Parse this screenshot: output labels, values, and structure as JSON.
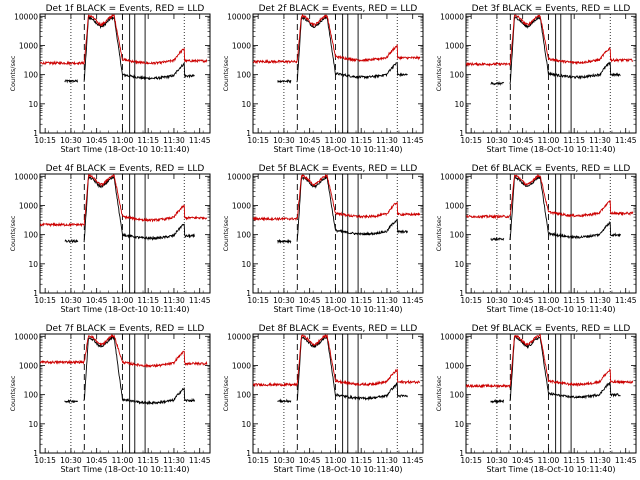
{
  "figure": {
    "background": "#ffffff"
  },
  "chart_data": [
    {
      "panel": "1f",
      "type": "line",
      "title": "Det 1f BLACK = Events, RED = LLD",
      "xlabel": "Start Time (18-Oct-10 10:11:40)",
      "ylabel": "Counts/sec",
      "xlim": [
        10.2,
        11.85
      ],
      "ylim": [
        1,
        12000
      ],
      "yscale": "log",
      "x_ticks": [
        "10:15",
        "10:30",
        "10:45",
        "11:00",
        "11:15",
        "11:30",
        "11:45"
      ],
      "y_ticks": [
        "1",
        "10",
        "100",
        "1000",
        "10000"
      ],
      "series": [
        {
          "name": "BLACK = Events",
          "color": "#000000",
          "baseline": 60,
          "pre_level": 60,
          "peak_level": 9000,
          "post_level": 100
        },
        {
          "name": "RED = LLD",
          "color": "#cc0000",
          "baseline": 250,
          "pre_level": 250,
          "peak_level": 10500,
          "post_level": 330
        }
      ],
      "vlines_dotted": [
        10.5,
        11.6
      ],
      "vlines_dashed": [
        10.63,
        11.0
      ],
      "vlines_solid": [
        11.07,
        11.12,
        11.22
      ]
    },
    {
      "panel": "2f",
      "type": "line",
      "title": "Det 2f BLACK = Events, RED = LLD",
      "xlabel": "Start Time (18-Oct-10 10:11:40)",
      "ylabel": "Counts/sec",
      "xlim": [
        10.2,
        11.85
      ],
      "ylim": [
        1,
        12000
      ],
      "yscale": "log",
      "x_ticks": [
        "10:15",
        "10:30",
        "10:45",
        "11:00",
        "11:15",
        "11:30",
        "11:45"
      ],
      "y_ticks": [
        "1",
        "10",
        "100",
        "1000",
        "10000"
      ],
      "series": [
        {
          "name": "BLACK = Events",
          "color": "#000000",
          "baseline": 60,
          "pre_level": 60,
          "peak_level": 9000,
          "post_level": 110
        },
        {
          "name": "RED = LLD",
          "color": "#cc0000",
          "baseline": 280,
          "pre_level": 280,
          "peak_level": 10500,
          "post_level": 420
        }
      ],
      "vlines_dotted": [
        10.5,
        11.6
      ],
      "vlines_dashed": [
        10.63,
        11.0
      ],
      "vlines_solid": [
        11.07,
        11.12,
        11.22
      ]
    },
    {
      "panel": "3f",
      "type": "line",
      "title": "Det 3f BLACK = Events, RED = LLD",
      "xlabel": "Start Time (18-Oct-10 10:11:40)",
      "ylabel": "Counts/sec",
      "xlim": [
        10.2,
        11.85
      ],
      "ylim": [
        1,
        12000
      ],
      "yscale": "log",
      "x_ticks": [
        "10:15",
        "10:30",
        "10:45",
        "11:00",
        "11:15",
        "11:30",
        "11:45"
      ],
      "y_ticks": [
        "1",
        "10",
        "100",
        "1000",
        "10000"
      ],
      "series": [
        {
          "name": "BLACK = Events",
          "color": "#000000",
          "baseline": 50,
          "pre_level": 50,
          "peak_level": 9000,
          "post_level": 110
        },
        {
          "name": "RED = LLD",
          "color": "#cc0000",
          "baseline": 230,
          "pre_level": 230,
          "peak_level": 10500,
          "post_level": 350
        }
      ],
      "vlines_dotted": [
        10.5,
        11.6
      ],
      "vlines_dashed": [
        10.63,
        11.0
      ],
      "vlines_solid": [
        11.07,
        11.12,
        11.22
      ]
    },
    {
      "panel": "4f",
      "type": "line",
      "title": "Det 4f BLACK = Events, RED = LLD",
      "xlabel": "Start Time (18-Oct-10 10:11:40)",
      "ylabel": "Counts/sec",
      "xlim": [
        10.2,
        11.85
      ],
      "ylim": [
        1,
        12000
      ],
      "yscale": "log",
      "x_ticks": [
        "10:15",
        "10:30",
        "10:45",
        "11:00",
        "11:15",
        "11:30",
        "11:45"
      ],
      "y_ticks": [
        "1",
        "10",
        "100",
        "1000",
        "10000"
      ],
      "series": [
        {
          "name": "BLACK = Events",
          "color": "#000000",
          "baseline": 60,
          "pre_level": 60,
          "peak_level": 9000,
          "post_level": 100
        },
        {
          "name": "RED = LLD",
          "color": "#cc0000",
          "baseline": 220,
          "pre_level": 220,
          "peak_level": 10500,
          "post_level": 420
        }
      ],
      "vlines_dotted": [
        10.5,
        11.6
      ],
      "vlines_dashed": [
        10.63,
        11.0
      ],
      "vlines_solid": [
        11.07,
        11.12,
        11.22
      ]
    },
    {
      "panel": "5f",
      "type": "line",
      "title": "Det 5f BLACK = Events, RED = LLD",
      "xlabel": "Start Time (18-Oct-10 10:11:40)",
      "ylabel": "Counts/sec",
      "xlim": [
        10.2,
        11.85
      ],
      "ylim": [
        1,
        12000
      ],
      "yscale": "log",
      "x_ticks": [
        "10:15",
        "10:30",
        "10:45",
        "11:00",
        "11:15",
        "11:30",
        "11:45"
      ],
      "y_ticks": [
        "1",
        "10",
        "100",
        "1000",
        "10000"
      ],
      "series": [
        {
          "name": "BLACK = Events",
          "color": "#000000",
          "baseline": 60,
          "pre_level": 60,
          "peak_level": 9000,
          "post_level": 140
        },
        {
          "name": "RED = LLD",
          "color": "#cc0000",
          "baseline": 350,
          "pre_level": 350,
          "peak_level": 10500,
          "post_level": 550
        }
      ],
      "vlines_dotted": [
        10.5,
        11.6
      ],
      "vlines_dashed": [
        10.63,
        11.0
      ],
      "vlines_solid": [
        11.07,
        11.12,
        11.22
      ]
    },
    {
      "panel": "6f",
      "type": "line",
      "title": "Det 6f BLACK = Events, RED = LLD",
      "xlabel": "Start Time (18-Oct-10 10:11:40)",
      "ylabel": "Counts/sec",
      "xlim": [
        10.2,
        11.85
      ],
      "ylim": [
        1,
        12000
      ],
      "yscale": "log",
      "x_ticks": [
        "10:15",
        "10:30",
        "10:45",
        "11:00",
        "11:15",
        "11:30",
        "11:45"
      ],
      "y_ticks": [
        "1",
        "10",
        "100",
        "1000",
        "10000"
      ],
      "series": [
        {
          "name": "BLACK = Events",
          "color": "#000000",
          "baseline": 70,
          "pre_level": 70,
          "peak_level": 9000,
          "post_level": 110
        },
        {
          "name": "RED = LLD",
          "color": "#cc0000",
          "baseline": 420,
          "pre_level": 420,
          "peak_level": 10500,
          "post_level": 600
        }
      ],
      "vlines_dotted": [
        10.5,
        11.6
      ],
      "vlines_dashed": [
        10.63,
        11.0
      ],
      "vlines_solid": [
        11.07,
        11.12,
        11.22
      ]
    },
    {
      "panel": "7f",
      "type": "line",
      "title": "Det 7f BLACK = Events, RED = LLD",
      "xlabel": "Start Time (18-Oct-10 10:11:40)",
      "ylabel": "Counts/sec",
      "xlim": [
        10.2,
        11.85
      ],
      "ylim": [
        1,
        12000
      ],
      "yscale": "log",
      "x_ticks": [
        "10:15",
        "10:30",
        "10:45",
        "11:00",
        "11:15",
        "11:30",
        "11:45"
      ],
      "y_ticks": [
        "1",
        "10",
        "100",
        "1000",
        "10000"
      ],
      "series": [
        {
          "name": "BLACK = Events",
          "color": "#000000",
          "baseline": 60,
          "pre_level": 60,
          "peak_level": 9000,
          "post_level": 70
        },
        {
          "name": "RED = LLD",
          "color": "#cc0000",
          "baseline": 1300,
          "pre_level": 1300,
          "peak_level": 10500,
          "post_level": 1300
        }
      ],
      "vlines_dotted": [
        10.5,
        11.6
      ],
      "vlines_dashed": [
        10.63,
        11.0
      ],
      "vlines_solid": [
        11.07,
        11.12,
        11.22
      ]
    },
    {
      "panel": "8f",
      "type": "line",
      "title": "Det 8f BLACK = Events, RED = LLD",
      "xlabel": "Start Time (18-Oct-10 10:11:40)",
      "ylabel": "Counts/sec",
      "xlim": [
        10.2,
        11.85
      ],
      "ylim": [
        1,
        12000
      ],
      "yscale": "log",
      "x_ticks": [
        "10:15",
        "10:30",
        "10:45",
        "11:00",
        "11:15",
        "11:30",
        "11:45"
      ],
      "y_ticks": [
        "1",
        "10",
        "100",
        "1000",
        "10000"
      ],
      "series": [
        {
          "name": "BLACK = Events",
          "color": "#000000",
          "baseline": 60,
          "pre_level": 60,
          "peak_level": 9000,
          "post_level": 100
        },
        {
          "name": "RED = LLD",
          "color": "#cc0000",
          "baseline": 220,
          "pre_level": 220,
          "peak_level": 10500,
          "post_level": 300
        }
      ],
      "vlines_dotted": [
        10.5,
        11.6
      ],
      "vlines_dashed": [
        10.63,
        11.0
      ],
      "vlines_solid": [
        11.07,
        11.12,
        11.22
      ]
    },
    {
      "panel": "9f",
      "type": "line",
      "title": "Det 9f BLACK = Events, RED = LLD",
      "xlabel": "Start Time (18-Oct-10 10:11:40)",
      "ylabel": "Counts/sec",
      "xlim": [
        10.2,
        11.85
      ],
      "ylim": [
        1,
        12000
      ],
      "yscale": "log",
      "x_ticks": [
        "10:15",
        "10:30",
        "10:45",
        "11:00",
        "11:15",
        "11:30",
        "11:45"
      ],
      "y_ticks": [
        "1",
        "10",
        "100",
        "1000",
        "10000"
      ],
      "series": [
        {
          "name": "BLACK = Events",
          "color": "#000000",
          "baseline": 60,
          "pre_level": 60,
          "peak_level": 9000,
          "post_level": 110
        },
        {
          "name": "RED = LLD",
          "color": "#cc0000",
          "baseline": 200,
          "pre_level": 200,
          "peak_level": 10500,
          "post_level": 300
        }
      ],
      "vlines_dotted": [
        10.5,
        11.6
      ],
      "vlines_dashed": [
        10.63,
        11.0
      ],
      "vlines_solid": [
        11.07,
        11.12,
        11.22
      ]
    }
  ]
}
